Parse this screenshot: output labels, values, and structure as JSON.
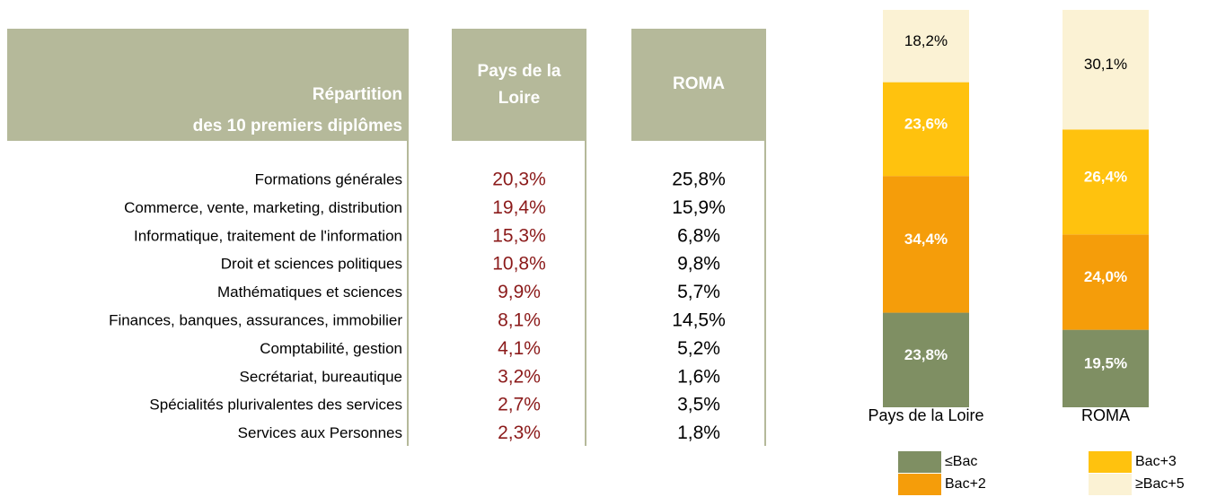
{
  "table": {
    "header": {
      "title": [
        "Répartition",
        "des 10 premiers diplômes"
      ],
      "col1": [
        "Pays de la",
        "Loire"
      ],
      "col2": [
        "ROMA"
      ]
    },
    "rows": [
      [
        "Formations générales",
        "20,3%",
        "25,8%"
      ],
      [
        "Commerce, vente, marketing, distribution",
        "19,4%",
        "15,9%"
      ],
      [
        "Informatique, traitement de l'information",
        "15,3%",
        "6,8%"
      ],
      [
        "Droit et sciences politiques",
        "10,8%",
        "9,8%"
      ],
      [
        "Mathématiques et sciences",
        "9,9%",
        "5,7%"
      ],
      [
        "Finances, banques, assurances, immobilier",
        "8,1%",
        "14,5%"
      ],
      [
        "Comptabilité, gestion",
        "4,1%",
        "5,2%"
      ],
      [
        "Secrétariat, bureautique",
        "3,2%",
        "1,6%"
      ],
      [
        "Spécialités plurivalentes des services",
        "2,7%",
        "3,5%"
      ],
      [
        "Services aux Personnes",
        "2,3%",
        "1,8%"
      ]
    ]
  },
  "chart_data": {
    "type": "stacked_bar",
    "categories": [
      "Pays de la Loire",
      "ROMA"
    ],
    "ylim": [
      0,
      100
    ],
    "series": [
      {
        "name": "≤Bac",
        "color": "#7f8f63",
        "values": [
          23.8,
          19.5
        ],
        "value_labels": [
          "23,8%",
          "19,5%"
        ]
      },
      {
        "name": "Bac+2",
        "color": "#f59d0a",
        "values": [
          34.4,
          24.0
        ],
        "value_labels": [
          "34,4%",
          "24,0%"
        ]
      },
      {
        "name": "Bac+3",
        "color": "#ffc20e",
        "values": [
          23.6,
          26.4
        ],
        "value_labels": [
          "23,6%",
          "26,4%"
        ]
      },
      {
        "name": "≥Bac+5",
        "color": "#fbf2d4",
        "values": [
          18.2,
          30.1
        ],
        "value_labels": [
          "18,2%",
          "30,1%"
        ]
      }
    ]
  }
}
